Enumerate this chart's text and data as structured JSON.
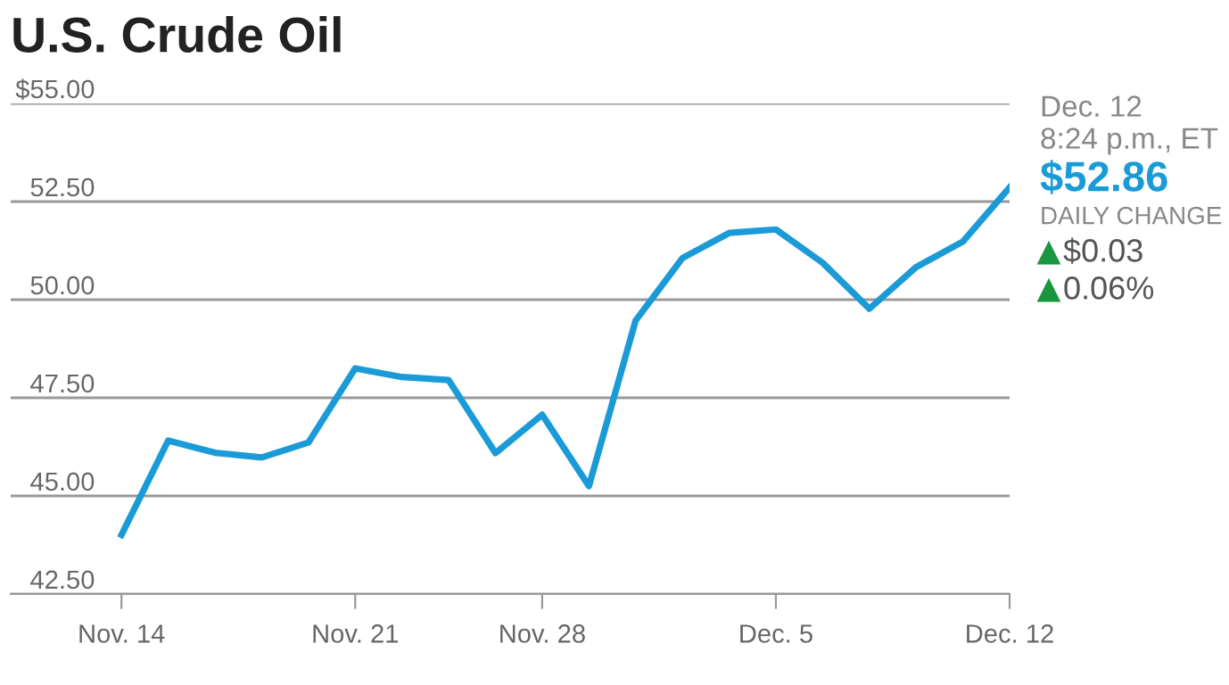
{
  "chart_data": {
    "type": "line",
    "title": "U.S. Crude Oil",
    "categories": [
      "Nov. 14",
      null,
      null,
      null,
      null,
      "Nov. 21",
      null,
      null,
      null,
      "Nov. 28",
      null,
      null,
      null,
      null,
      "Dec. 5",
      null,
      null,
      null,
      null,
      "Dec. 12"
    ],
    "series": [
      {
        "color": "#1a9bd7",
        "values": [
          44.01,
          46.41,
          46.1,
          45.98,
          46.36,
          48.25,
          48.03,
          47.95,
          46.09,
          47.07,
          45.25,
          49.47,
          51.06,
          51.7,
          51.79,
          50.94,
          49.77,
          50.83,
          51.48,
          52.86
        ]
      }
    ],
    "ylim": [
      42.5,
      55
    ],
    "yticks": [
      {
        "value": 42.5,
        "label": "42.50"
      },
      {
        "value": 45,
        "label": "45.00"
      },
      {
        "value": 47.5,
        "label": "47.50"
      },
      {
        "value": 50,
        "label": "50.00"
      },
      {
        "value": 52.5,
        "label": "52.50"
      },
      {
        "value": 55,
        "label": "$55.00"
      }
    ],
    "grid": "y",
    "legend": false,
    "marker": "none",
    "line_style": "solid",
    "annotations": [
      "Dec. 12",
      "8:24 p.m., ET",
      "$52.86",
      "DAILY CHANGE",
      "$0.03",
      "0.06%"
    ]
  }
}
